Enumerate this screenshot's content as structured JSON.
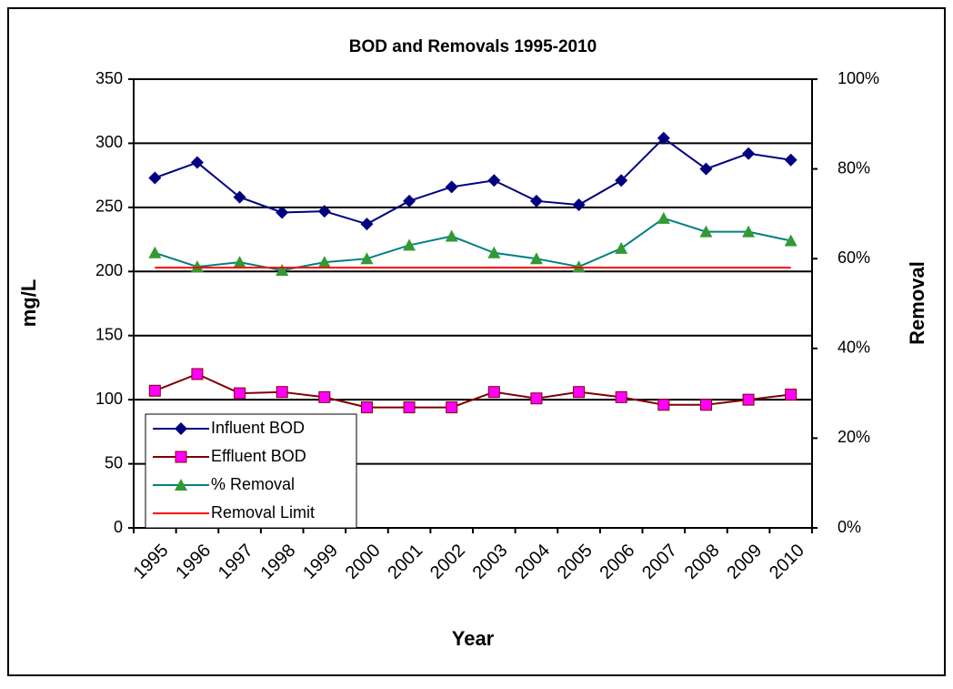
{
  "chart_data": {
    "type": "line",
    "title": "BOD and Removals 1995-2010",
    "x_label": "Year",
    "y_label": "mg/L",
    "y2_label": "Removal",
    "categories": [
      "1995",
      "1996",
      "1997",
      "1998",
      "1999",
      "2000",
      "2001",
      "2002",
      "2003",
      "2004",
      "2005",
      "2006",
      "2007",
      "2008",
      "2009",
      "2010"
    ],
    "ylim": [
      0,
      350
    ],
    "yticks": [
      0,
      50,
      100,
      150,
      200,
      250,
      300,
      350
    ],
    "y2lim": [
      0,
      100
    ],
    "y2ticks": [
      {
        "value": 0,
        "label": "0%"
      },
      {
        "value": 20,
        "label": "20%"
      },
      {
        "value": 40,
        "label": "40%"
      },
      {
        "value": 60,
        "label": "60%"
      },
      {
        "value": 80,
        "label": "80%"
      },
      {
        "value": 100,
        "label": "100%"
      }
    ],
    "grid": true,
    "legend": "lower left",
    "series": [
      {
        "name": "Influent BOD",
        "color": "#000080",
        "marker": "diamond",
        "marker_color": "#000080",
        "values": [
          273,
          285,
          258,
          246,
          247,
          237,
          255,
          266,
          271,
          255,
          252,
          271,
          304,
          280,
          292,
          287
        ]
      },
      {
        "name": "Effluent BOD",
        "color": "#800000",
        "marker": "square",
        "marker_color": "#ff00ff",
        "values": [
          107,
          120,
          105,
          106,
          102,
          94,
          94,
          94,
          106,
          101,
          106,
          102,
          96,
          96,
          100,
          104
        ]
      },
      {
        "name": "% Removal",
        "color": "#008080",
        "marker": "triangle",
        "marker_color": "#339933",
        "axis": "y2",
        "values": [
          61.3,
          58.2,
          59.2,
          57.4,
          59.2,
          60,
          63,
          65,
          61.3,
          60,
          58.2,
          62.3,
          69,
          66,
          66,
          64
        ]
      },
      {
        "name": "Removal Limit",
        "color": "#ff0000",
        "marker": "none",
        "axis": "y2",
        "values": [
          58,
          58,
          58,
          58,
          58,
          58,
          58,
          58,
          58,
          58,
          58,
          58,
          58,
          58,
          58,
          58
        ]
      }
    ]
  }
}
